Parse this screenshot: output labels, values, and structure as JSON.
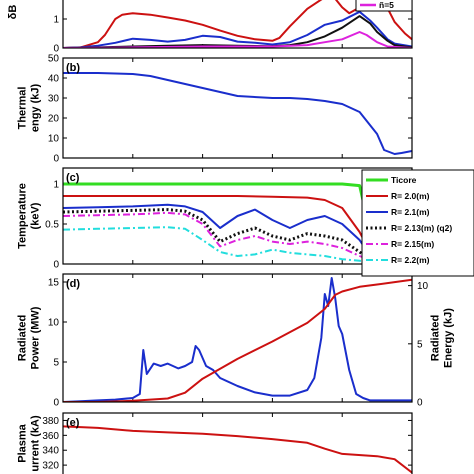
{
  "chart_data": [
    {
      "type": "line",
      "panel_label": "",
      "ylabel": "δB",
      "xlim": [
        0,
        1
      ],
      "ylim": [
        0,
        2
      ],
      "yticks": [
        0,
        1
      ],
      "legend": [
        "ñ=5"
      ],
      "series": [
        {
          "name": "",
          "color": "#cc1111",
          "style": "solid",
          "x": [
            0,
            0.05,
            0.1,
            0.12,
            0.15,
            0.17,
            0.2,
            0.25,
            0.3,
            0.35,
            0.4,
            0.45,
            0.5,
            0.55,
            0.6,
            0.62,
            0.65,
            0.7,
            0.75,
            0.78,
            0.8,
            0.82,
            0.85,
            0.88,
            0.9,
            0.92,
            0.95,
            0.98,
            1
          ],
          "y": [
            0,
            0.02,
            0.2,
            0.45,
            1.0,
            1.15,
            1.2,
            1.15,
            1.05,
            0.95,
            0.8,
            0.6,
            0.42,
            0.3,
            0.25,
            0.35,
            0.75,
            1.35,
            1.75,
            1.7,
            1.4,
            1.2,
            1.4,
            1.65,
            1.8,
            1.6,
            0.9,
            0.5,
            0.3
          ]
        },
        {
          "name": "",
          "color": "#1a2ecc",
          "style": "solid",
          "x": [
            0,
            0.05,
            0.1,
            0.15,
            0.2,
            0.25,
            0.3,
            0.35,
            0.4,
            0.45,
            0.5,
            0.55,
            0.6,
            0.65,
            0.7,
            0.75,
            0.8,
            0.85,
            0.88,
            0.9,
            0.93,
            0.95,
            1
          ],
          "y": [
            0,
            0.02,
            0.08,
            0.18,
            0.32,
            0.28,
            0.22,
            0.28,
            0.42,
            0.38,
            0.22,
            0.18,
            0.12,
            0.2,
            0.45,
            0.8,
            0.95,
            1.25,
            0.95,
            0.7,
            0.3,
            0.15,
            0.05
          ]
        },
        {
          "name": "",
          "color": "#111111",
          "style": "solid",
          "x": [
            0,
            0.1,
            0.2,
            0.3,
            0.4,
            0.5,
            0.6,
            0.65,
            0.7,
            0.75,
            0.8,
            0.85,
            0.88,
            0.9,
            0.93,
            0.95,
            1
          ],
          "y": [
            0,
            0.02,
            0.05,
            0.08,
            0.1,
            0.08,
            0.06,
            0.1,
            0.2,
            0.4,
            0.7,
            1.1,
            0.85,
            0.55,
            0.25,
            0.1,
            0.02
          ]
        },
        {
          "name": "ñ=5",
          "color": "#dd22dd",
          "style": "solid",
          "x": [
            0,
            0.2,
            0.4,
            0.6,
            0.7,
            0.75,
            0.8,
            0.85,
            0.87,
            0.9,
            0.93,
            1
          ],
          "y": [
            0,
            0.02,
            0.05,
            0.05,
            0.1,
            0.2,
            0.3,
            0.55,
            0.45,
            0.2,
            0.05,
            0
          ]
        }
      ]
    },
    {
      "type": "line",
      "panel_label": "(b)",
      "ylabel": [
        "Thermal",
        "engy (kJ)"
      ],
      "xlim": [
        0,
        1
      ],
      "ylim": [
        0,
        50
      ],
      "yticks": [
        0,
        10,
        20,
        30,
        40,
        50
      ],
      "series": [
        {
          "name": "",
          "color": "#1a2ecc",
          "style": "solid",
          "x": [
            0,
            0.1,
            0.2,
            0.25,
            0.3,
            0.4,
            0.5,
            0.6,
            0.65,
            0.7,
            0.75,
            0.8,
            0.85,
            0.9,
            0.92,
            0.95,
            0.97,
            1
          ],
          "y": [
            42.5,
            42.5,
            42,
            41,
            39,
            35,
            31,
            30,
            30,
            29.5,
            28.5,
            27,
            23,
            12,
            4,
            2,
            2.5,
            3.5
          ]
        }
      ]
    },
    {
      "type": "line",
      "panel_label": "(c)",
      "ylabel": [
        "Temperature",
        "(keV)"
      ],
      "xlim": [
        0,
        1
      ],
      "ylim": [
        0,
        1.2
      ],
      "yticks": [
        0,
        0.5,
        1
      ],
      "yticklabels": [
        "0",
        "0.5",
        "1"
      ],
      "legend": [
        "Ticore",
        "R= 2.0(m)",
        "R= 2.1(m)",
        "R= 2.13(m) (q2)",
        "R= 2.15(m)",
        "R= 2.2(m)"
      ],
      "series": [
        {
          "name": "Ticore",
          "color": "#33dd22",
          "style": "solid",
          "width": 3,
          "x": [
            0,
            0.3,
            0.6,
            0.8,
            0.85,
            0.87,
            0.88,
            0.9,
            0.95,
            1
          ],
          "y": [
            1,
            1,
            1,
            1,
            0.98,
            0.6,
            0.1,
            0.05,
            0.08,
            0.1
          ]
        },
        {
          "name": "R= 2.0(m)",
          "color": "#cc1111",
          "style": "solid",
          "width": 2,
          "x": [
            0,
            0.1,
            0.2,
            0.3,
            0.4,
            0.5,
            0.6,
            0.7,
            0.75,
            0.8,
            0.85,
            0.88,
            0.9,
            0.95,
            1
          ],
          "y": [
            0.85,
            0.85,
            0.85,
            0.85,
            0.85,
            0.85,
            0.84,
            0.83,
            0.8,
            0.7,
            0.4,
            0.15,
            0.05,
            0.05,
            0.05
          ]
        },
        {
          "name": "R= 2.1(m)",
          "color": "#1a2ecc",
          "style": "solid",
          "width": 2,
          "x": [
            0,
            0.1,
            0.2,
            0.3,
            0.35,
            0.4,
            0.45,
            0.5,
            0.55,
            0.6,
            0.65,
            0.7,
            0.75,
            0.8,
            0.85,
            0.88,
            0.9,
            0.95,
            1
          ],
          "y": [
            0.7,
            0.71,
            0.72,
            0.74,
            0.72,
            0.65,
            0.45,
            0.6,
            0.68,
            0.55,
            0.45,
            0.55,
            0.6,
            0.5,
            0.3,
            0.1,
            0.04,
            0.04,
            0.05
          ]
        },
        {
          "name": "R= 2.13(m) (q2)",
          "color": "#111111",
          "style": "dotted",
          "width": 3,
          "x": [
            0,
            0.1,
            0.2,
            0.3,
            0.35,
            0.4,
            0.45,
            0.5,
            0.55,
            0.6,
            0.65,
            0.7,
            0.75,
            0.8,
            0.85,
            0.88,
            0.9,
            0.95,
            1
          ],
          "y": [
            0.65,
            0.66,
            0.67,
            0.68,
            0.66,
            0.55,
            0.28,
            0.38,
            0.45,
            0.35,
            0.3,
            0.38,
            0.35,
            0.3,
            0.15,
            0.06,
            0.03,
            0.03,
            0.03
          ]
        },
        {
          "name": "R= 2.15(m)",
          "color": "#dd22dd",
          "style": "dashdot",
          "width": 2,
          "x": [
            0,
            0.1,
            0.2,
            0.3,
            0.35,
            0.4,
            0.45,
            0.5,
            0.55,
            0.6,
            0.65,
            0.7,
            0.75,
            0.8,
            0.85,
            0.88,
            0.9,
            0.95,
            1
          ],
          "y": [
            0.6,
            0.61,
            0.62,
            0.64,
            0.62,
            0.5,
            0.22,
            0.3,
            0.35,
            0.28,
            0.25,
            0.28,
            0.25,
            0.2,
            0.1,
            0.05,
            0.03,
            0.03,
            0.03
          ]
        },
        {
          "name": "R= 2.2(m)",
          "color": "#22dddd",
          "style": "dashdot",
          "width": 2,
          "x": [
            0,
            0.1,
            0.2,
            0.3,
            0.35,
            0.4,
            0.45,
            0.5,
            0.55,
            0.6,
            0.65,
            0.7,
            0.75,
            0.8,
            0.85,
            0.88,
            0.9,
            0.95,
            1
          ],
          "y": [
            0.43,
            0.44,
            0.45,
            0.46,
            0.44,
            0.3,
            0.15,
            0.1,
            0.12,
            0.18,
            0.14,
            0.12,
            0.1,
            0.06,
            0.04,
            0.02,
            0.02,
            0.02,
            0.02
          ]
        }
      ]
    },
    {
      "type": "line",
      "panel_label": "(d)",
      "ylabel": [
        "Radiated",
        "Power (MW)"
      ],
      "ylabel_color": "#1a2ecc",
      "y2label": [
        "Radiated",
        "Energy (kJ)"
      ],
      "y2label_color": "#cc1111",
      "xlim": [
        0,
        1
      ],
      "ylim": [
        0,
        16
      ],
      "yticks": [
        0,
        5,
        10,
        15
      ],
      "y2lim": [
        0,
        11
      ],
      "y2ticks": [
        0,
        5,
        10
      ],
      "series": [
        {
          "name": "",
          "axis": "left",
          "color": "#1a2ecc",
          "style": "solid",
          "x": [
            0,
            0.05,
            0.1,
            0.15,
            0.2,
            0.22,
            0.23,
            0.24,
            0.26,
            0.28,
            0.3,
            0.33,
            0.35,
            0.37,
            0.38,
            0.39,
            0.41,
            0.43,
            0.45,
            0.5,
            0.55,
            0.6,
            0.65,
            0.7,
            0.72,
            0.74,
            0.75,
            0.76,
            0.77,
            0.78,
            0.79,
            0.8,
            0.82,
            0.84,
            0.86,
            0.88,
            0.9,
            0.95,
            1
          ],
          "y": [
            0,
            0.1,
            0.2,
            0.3,
            0.5,
            1,
            6.5,
            3.5,
            4.8,
            4.5,
            4.8,
            4.2,
            4.5,
            5,
            7,
            6.5,
            4.5,
            4,
            3,
            2,
            1.2,
            0.8,
            0.8,
            1.5,
            3,
            8,
            13.5,
            12,
            15.5,
            13,
            9.5,
            8.5,
            4,
            1,
            0.5,
            0.2,
            0.2,
            0.2,
            0.2
          ]
        },
        {
          "name": "",
          "axis": "right",
          "color": "#cc1111",
          "style": "solid",
          "x": [
            0,
            0.1,
            0.2,
            0.3,
            0.35,
            0.4,
            0.5,
            0.6,
            0.7,
            0.75,
            0.78,
            0.8,
            0.85,
            0.9,
            0.95,
            1
          ],
          "y": [
            0,
            0,
            0.1,
            0.3,
            0.8,
            2,
            3.7,
            5.2,
            6.8,
            8,
            9.2,
            9.5,
            9.9,
            10.1,
            10.3,
            10.5
          ]
        }
      ]
    },
    {
      "type": "line",
      "panel_label": "(e)",
      "ylabel": [
        "Plasma",
        "urrent (kA)"
      ],
      "xlim": [
        0,
        1
      ],
      "ylim": [
        300,
        390
      ],
      "yticks": [
        300,
        320,
        340,
        360,
        380
      ],
      "series": [
        {
          "name": "",
          "color": "#cc1111",
          "style": "solid",
          "x": [
            0,
            0.1,
            0.2,
            0.3,
            0.4,
            0.5,
            0.6,
            0.7,
            0.75,
            0.8,
            0.9,
            0.95,
            1
          ],
          "y": [
            372,
            370,
            366,
            364,
            362,
            359,
            355,
            350,
            342,
            335,
            332,
            328,
            310
          ]
        }
      ]
    }
  ]
}
